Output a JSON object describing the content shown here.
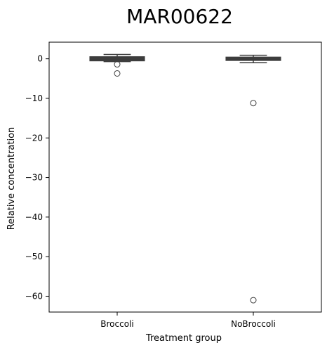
{
  "chart_data": {
    "type": "boxplot",
    "title": "MAR00622",
    "xlabel": "Treatment group",
    "ylabel": "Relative concentration",
    "categories": [
      "Broccoli",
      "NoBroccoli"
    ],
    "ylim": [
      -64,
      4.2
    ],
    "yticks": [
      0,
      -10,
      -20,
      -30,
      -40,
      -50,
      -60
    ],
    "yticklabels": [
      "0",
      "−10",
      "−20",
      "−30",
      "−40",
      "−50",
      "−60"
    ],
    "grid": false,
    "boxes": [
      {
        "category": "Broccoli",
        "whisker_low": -0.7,
        "q1": -0.5,
        "median": 0.0,
        "q3": 0.5,
        "whisker_high": 1.1,
        "outliers": [
          -1.4,
          -3.7
        ]
      },
      {
        "category": "NoBroccoli",
        "whisker_low": -1.0,
        "q1": -0.4,
        "median": 0.0,
        "q3": 0.4,
        "whisker_high": 0.9,
        "outliers": [
          -11.2,
          -61.0
        ]
      }
    ],
    "colors": {
      "box": "#3d3d3d",
      "edge": "#3d3d3d",
      "axis": "#000000"
    }
  }
}
